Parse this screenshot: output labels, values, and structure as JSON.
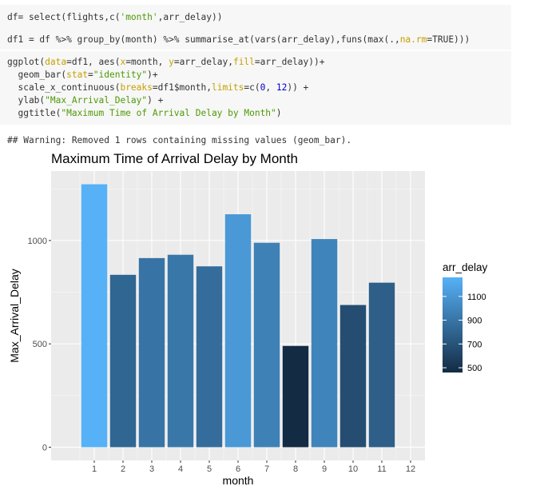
{
  "code": {
    "chunk1": {
      "line1": [
        "df= select(flights,c(",
        "'month'",
        ",arr_delay))"
      ],
      "line2": [
        "df1 = df %>% group_by(month) %>% summarise_at(vars(arr_delay),funs(max(.,",
        "na.rm",
        "=TRUE)))"
      ]
    },
    "chunk2": {
      "line1": [
        "ggplot(",
        "data",
        "=df1, aes(",
        "x",
        "=month, ",
        "y",
        "=arr_delay,",
        "fill",
        "=arr_delay))+"
      ],
      "line2": [
        "  geom_bar(",
        "stat",
        "=",
        "\"identity\"",
        ")+"
      ],
      "line3": [
        "  scale_x_continuous(",
        "breaks",
        "=df1$month,",
        "limits",
        "=c(",
        "0",
        ", ",
        "12",
        ")) +"
      ],
      "line4": [
        "  ylab(",
        "\"Max_Arrival_Delay\"",
        ") +"
      ],
      "line5": [
        "  ggtitle(",
        "\"Maximum Time of Arrival Delay by Month\"",
        ")"
      ]
    }
  },
  "output": {
    "warning": "## Warning: Removed 1 rows containing missing values (geom_bar)."
  },
  "colors": {
    "panel_bg": "#ebebeb",
    "grid_major": "#ffffff",
    "fill_low": "#132b43",
    "fill_high": "#56b1f7"
  },
  "chart_data": {
    "type": "bar",
    "title": "Maximum Time of Arrival Delay by Month",
    "xlabel": "month",
    "ylabel": "Max_Arrival_Delay",
    "x": [
      1,
      2,
      3,
      4,
      5,
      6,
      7,
      8,
      9,
      10,
      11
    ],
    "values": [
      1272,
      834,
      915,
      931,
      875,
      1127,
      989,
      490,
      1007,
      688,
      796
    ],
    "x_ticks": [
      1,
      2,
      3,
      4,
      5,
      6,
      7,
      8,
      9,
      10,
      11,
      12
    ],
    "y_ticks": [
      0,
      500,
      1000
    ],
    "xlim": [
      -0.5,
      12.5
    ],
    "ylim": [
      -64,
      1336
    ],
    "grid": true,
    "legend": {
      "title": "arr_delay",
      "position": "right",
      "breaks": [
        1100,
        900,
        700,
        500
      ],
      "range": [
        490,
        1272
      ]
    }
  }
}
